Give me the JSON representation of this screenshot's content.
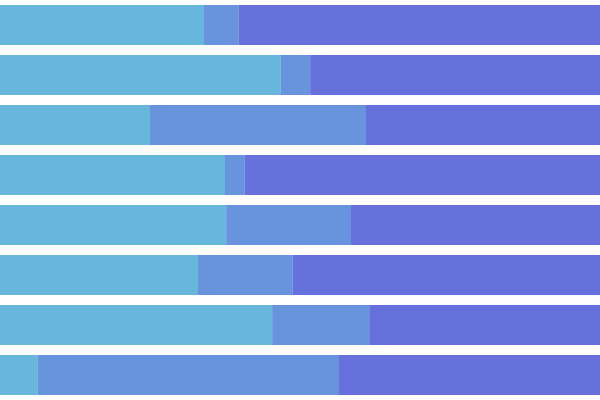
{
  "chart_data": {
    "type": "bar",
    "orientation": "horizontal",
    "stacked": true,
    "normalized_to": 100,
    "xlim": [
      0,
      100
    ],
    "grid": false,
    "legend": "none",
    "categories": [
      "",
      "",
      "",
      "",
      "",
      "",
      "",
      ""
    ],
    "series": [
      {
        "color": "#67b7dc",
        "values": [
          34,
          46.8,
          25,
          37.5,
          37.7,
          33,
          45.4,
          6.3
        ]
      },
      {
        "color": "#6794dc",
        "values": [
          5.8,
          4.9,
          36,
          3.3,
          20.8,
          15.8,
          16.2,
          50.2
        ]
      },
      {
        "color": "#6771dc",
        "values": [
          60.2,
          48.3,
          39,
          59.2,
          41.5,
          51.2,
          38.4,
          43.5
        ]
      }
    ]
  }
}
